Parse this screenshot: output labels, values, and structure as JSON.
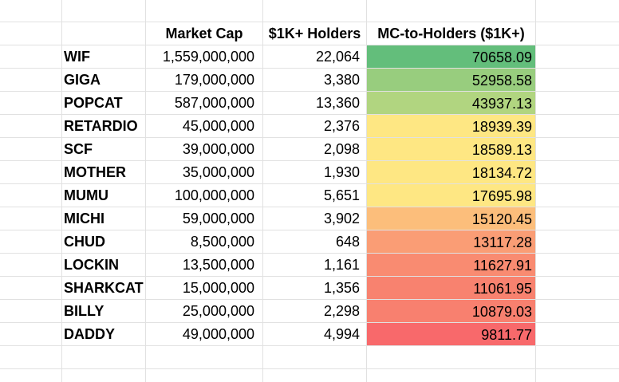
{
  "sheet": {
    "headers": [
      "",
      "Market Cap",
      "$1K+ Holders",
      "MC-to-Holders ($1K+)"
    ],
    "rows": [
      {
        "ticker": "WIF",
        "market_cap": "1,559,000,000",
        "holders": "22,064",
        "ratio": "70658.09",
        "ratio_color": "#63be7b"
      },
      {
        "ticker": "GIGA",
        "market_cap": "179,000,000",
        "holders": "3,380",
        "ratio": "52958.58",
        "ratio_color": "#98cd7e"
      },
      {
        "ticker": "POPCAT",
        "market_cap": "587,000,000",
        "holders": "13,360",
        "ratio": "43937.13",
        "ratio_color": "#b1d580"
      },
      {
        "ticker": "RETARDIO",
        "market_cap": "45,000,000",
        "holders": "2,376",
        "ratio": "18939.39",
        "ratio_color": "#fee783"
      },
      {
        "ticker": "SCF",
        "market_cap": "39,000,000",
        "holders": "2,098",
        "ratio": "18589.13",
        "ratio_color": "#fee783"
      },
      {
        "ticker": "MOTHER",
        "market_cap": "35,000,000",
        "holders": "1,930",
        "ratio": "18134.72",
        "ratio_color": "#fee783"
      },
      {
        "ticker": "MUMU",
        "market_cap": "100,000,000",
        "holders": "5,651",
        "ratio": "17695.98",
        "ratio_color": "#fee783"
      },
      {
        "ticker": "MICHI",
        "market_cap": "59,000,000",
        "holders": "3,902",
        "ratio": "15120.45",
        "ratio_color": "#fcbe7b"
      },
      {
        "ticker": "CHUD",
        "market_cap": "8,500,000",
        "holders": "648",
        "ratio": "13117.28",
        "ratio_color": "#fa9d75"
      },
      {
        "ticker": "LOCKIN",
        "market_cap": "13,500,000",
        "holders": "1,161",
        "ratio": "11627.91",
        "ratio_color": "#f98b71"
      },
      {
        "ticker": "SHARKCAT",
        "market_cap": "15,000,000",
        "holders": "1,356",
        "ratio": "11061.95",
        "ratio_color": "#f8826f"
      },
      {
        "ticker": "BILLY",
        "market_cap": "25,000,000",
        "holders": "2,298",
        "ratio": "10879.03",
        "ratio_color": "#f8806f"
      },
      {
        "ticker": "DADDY",
        "market_cap": "49,000,000",
        "holders": "4,994",
        "ratio": "9811.77",
        "ratio_color": "#f8696b"
      }
    ]
  }
}
